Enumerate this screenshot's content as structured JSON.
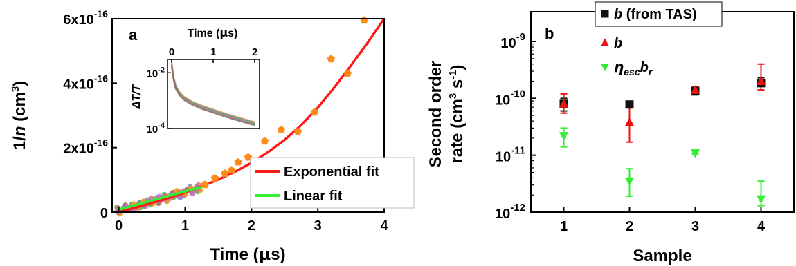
{
  "chart_data": [
    {
      "type": "scatter",
      "panel_label": "a",
      "xlabel": {
        "pre": "Time (",
        "greek": "μ",
        "post": "s)"
      },
      "ylabel": {
        "pre": "1/",
        "italic": "n",
        "mid": " (cm",
        "sup": "3",
        "post": ")"
      },
      "xlim": [
        -0.1,
        4.0
      ],
      "ylim": [
        0,
        6.0
      ],
      "y_scale_note": "values in units of 1e-16 cm^3",
      "xticks": [
        {
          "value": 0,
          "label": "0"
        },
        {
          "value": 1,
          "label": "1"
        },
        {
          "value": 2,
          "label": "2"
        },
        {
          "value": 3,
          "label": "3"
        },
        {
          "value": 4,
          "label": "4"
        }
      ],
      "yticks": [
        {
          "value": 0,
          "base": "0",
          "exp": ""
        },
        {
          "value": 2,
          "base": "2x10",
          "exp": "-16"
        },
        {
          "value": 4,
          "base": "4x10",
          "exp": "-16"
        },
        {
          "value": 6,
          "base": "6x10",
          "exp": "-16"
        }
      ],
      "series": [
        {
          "name": "Exponential fit",
          "kind": "line",
          "color": "#ff1a1a",
          "x": [
            0,
            0.25,
            0.5,
            0.75,
            1.0,
            1.25,
            1.5,
            1.75,
            2.0,
            2.25,
            2.5,
            2.75,
            3.0,
            3.25,
            3.5,
            3.75,
            4.0
          ],
          "y": [
            0.0,
            0.14,
            0.29,
            0.44,
            0.61,
            0.8,
            1.01,
            1.25,
            1.53,
            1.86,
            2.24,
            2.7,
            3.24,
            3.87,
            4.55,
            5.25,
            6.0
          ]
        },
        {
          "name": "Linear fit",
          "kind": "line",
          "color": "#33ee33",
          "x": [
            0,
            1.35
          ],
          "y": [
            0.08,
            0.84
          ]
        },
        {
          "name": "data (orange pentagons)",
          "kind": "points",
          "color": "#ff8c1a",
          "x": [
            1.3,
            1.45,
            1.6,
            1.7,
            1.8,
            1.95,
            2.2,
            2.45,
            2.7,
            2.95,
            3.2,
            3.45,
            3.7
          ],
          "y": [
            0.85,
            1.05,
            1.2,
            1.3,
            1.55,
            1.7,
            2.2,
            2.55,
            2.5,
            3.1,
            4.75,
            4.3,
            5.95
          ]
        },
        {
          "name": "data (dense traces)",
          "kind": "dense",
          "colors": [
            "#4caf50",
            "#5b8fd6",
            "#8a6a4a",
            "#e07070",
            "#ff8c1a",
            "#c070c0"
          ],
          "x": [
            0.0,
            0.1,
            0.2,
            0.3,
            0.4,
            0.5,
            0.6,
            0.7,
            0.8,
            0.9,
            1.0,
            1.1,
            1.2
          ],
          "y": [
            0.05,
            0.11,
            0.15,
            0.21,
            0.27,
            0.33,
            0.38,
            0.44,
            0.5,
            0.56,
            0.62,
            0.68,
            0.74
          ]
        }
      ],
      "legend": [
        {
          "label": "Exponential fit",
          "color": "#ff1a1a"
        },
        {
          "label": "Linear fit",
          "color": "#33ee33"
        }
      ],
      "inset": {
        "xlabel": {
          "pre": "Time (",
          "greek": "μ",
          "post": "s)"
        },
        "ylabel": "ΔT/T",
        "xlim": [
          0,
          2
        ],
        "y_scale": "log",
        "ylim": [
          0.0001,
          0.03
        ],
        "xticks": [
          {
            "value": 0,
            "label": "0"
          },
          {
            "value": 1,
            "label": "1"
          },
          {
            "value": 2,
            "label": "2"
          }
        ],
        "yticks": [
          {
            "value": 0.01,
            "base": "10",
            "exp": "-2"
          },
          {
            "value": 0.0001,
            "base": "10",
            "exp": "-4"
          }
        ],
        "decay": {
          "x": [
            0.0,
            0.02,
            0.05,
            0.1,
            0.2,
            0.3,
            0.5,
            0.7,
            1.0,
            1.3,
            1.6,
            2.0
          ],
          "y": [
            0.02,
            0.012,
            0.006,
            0.003,
            0.0017,
            0.0012,
            0.0008,
            0.0006,
            0.00042,
            0.0003,
            0.00022,
            0.00015
          ]
        }
      }
    },
    {
      "type": "scatter",
      "panel_label": "b",
      "xlabel": "Sample",
      "ylabel_line1": "Second order",
      "ylabel_line2": {
        "pre": "rate (cm",
        "sup1": "3",
        "mid": " s",
        "sup2": "-1",
        "post": ")"
      },
      "y_scale": "log",
      "ylim": [
        1e-12,
        1e-09
      ],
      "xlim": [
        0.5,
        4.5
      ],
      "xticks": [
        {
          "value": 1,
          "label": "1"
        },
        {
          "value": 2,
          "label": "2"
        },
        {
          "value": 3,
          "label": "3"
        },
        {
          "value": 4,
          "label": "4"
        }
      ],
      "yticks": [
        {
          "value": 1e-09,
          "base": "10",
          "exp": "-9"
        },
        {
          "value": 1e-10,
          "base": "10",
          "exp": "-10"
        },
        {
          "value": 1e-11,
          "base": "10",
          "exp": "-11"
        },
        {
          "value": 1e-12,
          "base": "10",
          "exp": "-12"
        }
      ],
      "series": [
        {
          "name": "b (from TAS)",
          "marker": "square",
          "color": "#111111",
          "x": [
            1,
            2,
            3,
            4
          ],
          "y": [
            8e-11,
            7.8e-11,
            1.35e-10,
            1.85e-10
          ],
          "err_low": [
            6e-11,
            7e-11,
            1.15e-10,
            1.4e-10
          ],
          "err_high": [
            1e-10,
            8.5e-11,
            1.5e-10,
            2.3e-10
          ]
        },
        {
          "name": "b",
          "marker": "triangle-up",
          "color": "#ee1111",
          "x": [
            1,
            2,
            3,
            4
          ],
          "y": [
            8e-11,
            3.8e-11,
            1.4e-10,
            2e-10
          ],
          "err_low": [
            5.5e-11,
            1.7e-11,
            1.2e-10,
            1.4e-10
          ],
          "err_high": [
            1.2e-10,
            8.5e-11,
            1.6e-10,
            4e-10
          ]
        },
        {
          "name": "η_esc b_r",
          "marker": "triangle-down",
          "color": "#33ee33",
          "x": [
            1,
            2,
            3,
            4
          ],
          "y": [
            2.2e-11,
            3.5e-12,
            1.1e-11,
            1.7e-12
          ],
          "err_low": [
            1.4e-11,
            1.9e-12,
            1.05e-11,
            1.3e-12
          ],
          "err_high": [
            3e-11,
            5.8e-12,
            1.2e-11,
            3.5e-12
          ]
        }
      ],
      "legend": [
        {
          "marker": "square",
          "color": "#111111",
          "italic": "b",
          "rest": " (from TAS)"
        },
        {
          "marker": "triangle-up",
          "color": "#ee1111",
          "italic": "b",
          "rest": ""
        },
        {
          "marker": "triangle-down",
          "color": "#33ee33",
          "eta": "η",
          "eta_sub": "esc",
          "b": "b",
          "b_sub": "r"
        }
      ]
    }
  ]
}
